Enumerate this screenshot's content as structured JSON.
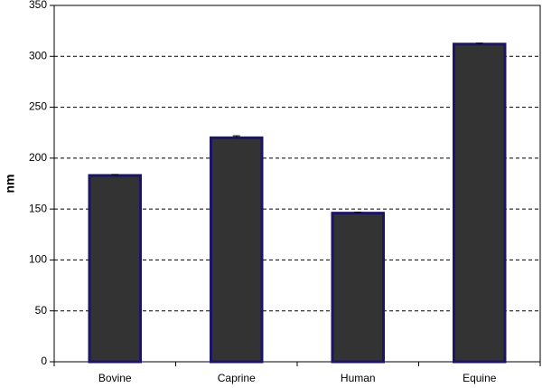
{
  "chart_data": {
    "type": "bar",
    "y_label": "nm",
    "categories": [
      "Bovine",
      "Caprine",
      "Human",
      "Equine"
    ],
    "values": [
      183,
      220,
      146,
      312
    ],
    "errors": [
      1,
      2,
      1,
      1
    ],
    "color": "#333333",
    "edge_color": "#1c1464",
    "ylim": [
      0,
      350
    ],
    "yticks": [
      0,
      50,
      100,
      150,
      200,
      250,
      300,
      350
    ],
    "grid": true
  }
}
